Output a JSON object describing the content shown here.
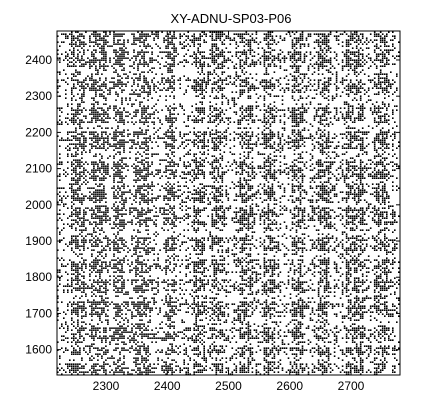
{
  "chart_data": {
    "type": "heatmap",
    "variant": "binary recurrence plot (dense black dots on white)",
    "title": "XY-ADNU-SP03-P06",
    "xlabel": "",
    "ylabel": "",
    "xlim": [
      2220,
      2780
    ],
    "ylim": [
      1530,
      2480
    ],
    "x_ticks": [
      2300,
      2400,
      2500,
      2600,
      2700
    ],
    "x_tick_labels": [
      "2300",
      "2400",
      "2500",
      "2600",
      "2700"
    ],
    "y_ticks": [
      1600,
      1700,
      1800,
      1900,
      2000,
      2100,
      2200,
      2300,
      2400
    ],
    "y_tick_labels": [
      "1600",
      "1700",
      "1800",
      "1900",
      "2000",
      "2100",
      "2200",
      "2300",
      "2400"
    ],
    "grid": false,
    "legend": "none",
    "colors": {
      "dot": "#000000",
      "background": "#ffffff",
      "axes": "#000000"
    },
    "dense_x_bands": [
      [
        2240,
        2265
      ],
      [
        2275,
        2300
      ],
      [
        2310,
        2330
      ],
      [
        2345,
        2370
      ],
      [
        2395,
        2410
      ],
      [
        2440,
        2460
      ],
      [
        2470,
        2490
      ],
      [
        2515,
        2540
      ],
      [
        2555,
        2575
      ],
      [
        2600,
        2620
      ],
      [
        2645,
        2665
      ],
      [
        2690,
        2720
      ],
      [
        2735,
        2760
      ]
    ],
    "dense_y_bands": [
      [
        1535,
        1560
      ],
      [
        1580,
        1605
      ],
      [
        1625,
        1660
      ],
      [
        1690,
        1730
      ],
      [
        1760,
        1790
      ],
      [
        1810,
        1850
      ],
      [
        1870,
        1910
      ],
      [
        1940,
        1990
      ],
      [
        2010,
        2050
      ],
      [
        2070,
        2120
      ],
      [
        2150,
        2200
      ],
      [
        2225,
        2270
      ],
      [
        2310,
        2345
      ],
      [
        2380,
        2420
      ],
      [
        2440,
        2470
      ]
    ]
  }
}
